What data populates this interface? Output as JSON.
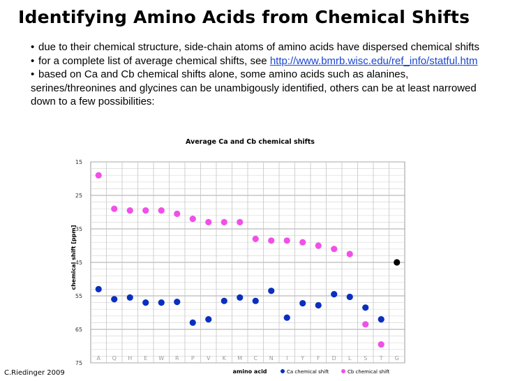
{
  "slide": {
    "title": "Identifying Amino Acids from Chemical Shifts",
    "bullets": [
      {
        "text": "due to their chemical structure, side-chain atoms of amino acids have dispersed chemical shifts"
      },
      {
        "text": "for a complete list of average chemical shifts, see ",
        "link": "http://www.bmrb.wisc.edu/ref_info/statful.htm"
      },
      {
        "text": "based on Ca and Cb chemical shifts alone, some amino acids such as alanines, serines/threonines and glycines can be unambigously identified, others can be at least narrowed down to a few possibilities:"
      }
    ],
    "credit": "C.Riedinger 2009"
  },
  "chart_data": {
    "type": "scatter",
    "title": "Average Ca and Cb chemical shifts",
    "xlabel": "amino acid",
    "ylabel": "chemical shift [ppm]",
    "categories": [
      "A",
      "Q",
      "H",
      "E",
      "W",
      "R",
      "P",
      "V",
      "K",
      "M",
      "C",
      "N",
      "I",
      "Y",
      "F",
      "D",
      "L",
      "S",
      "T",
      "G"
    ],
    "y_ticks": [
      15,
      25,
      35,
      45,
      55,
      65,
      75
    ],
    "ylim": [
      15,
      75
    ],
    "y_inverted": true,
    "grid": true,
    "legend_position": "bottom",
    "series": [
      {
        "name": "Ca chemical shift",
        "color": "#0a2fbf",
        "values": [
          53,
          56,
          55.5,
          57,
          57,
          56.8,
          63,
          62,
          56.5,
          55.5,
          56.5,
          53.5,
          61.5,
          57.2,
          57.8,
          54.5,
          55.3,
          58.5,
          62,
          null
        ]
      },
      {
        "name": "Cb chemical shift",
        "color": "#f050e8",
        "values": [
          19,
          29,
          29.5,
          29.5,
          29.5,
          30.5,
          32,
          33,
          33,
          33,
          38,
          38.5,
          38.5,
          39,
          40,
          41,
          42.5,
          63.5,
          69.5,
          null
        ]
      },
      {
        "name": "",
        "color": "#000000",
        "values": [
          null,
          null,
          null,
          null,
          null,
          null,
          null,
          null,
          null,
          null,
          null,
          null,
          null,
          null,
          null,
          null,
          null,
          null,
          null,
          45
        ]
      }
    ]
  }
}
